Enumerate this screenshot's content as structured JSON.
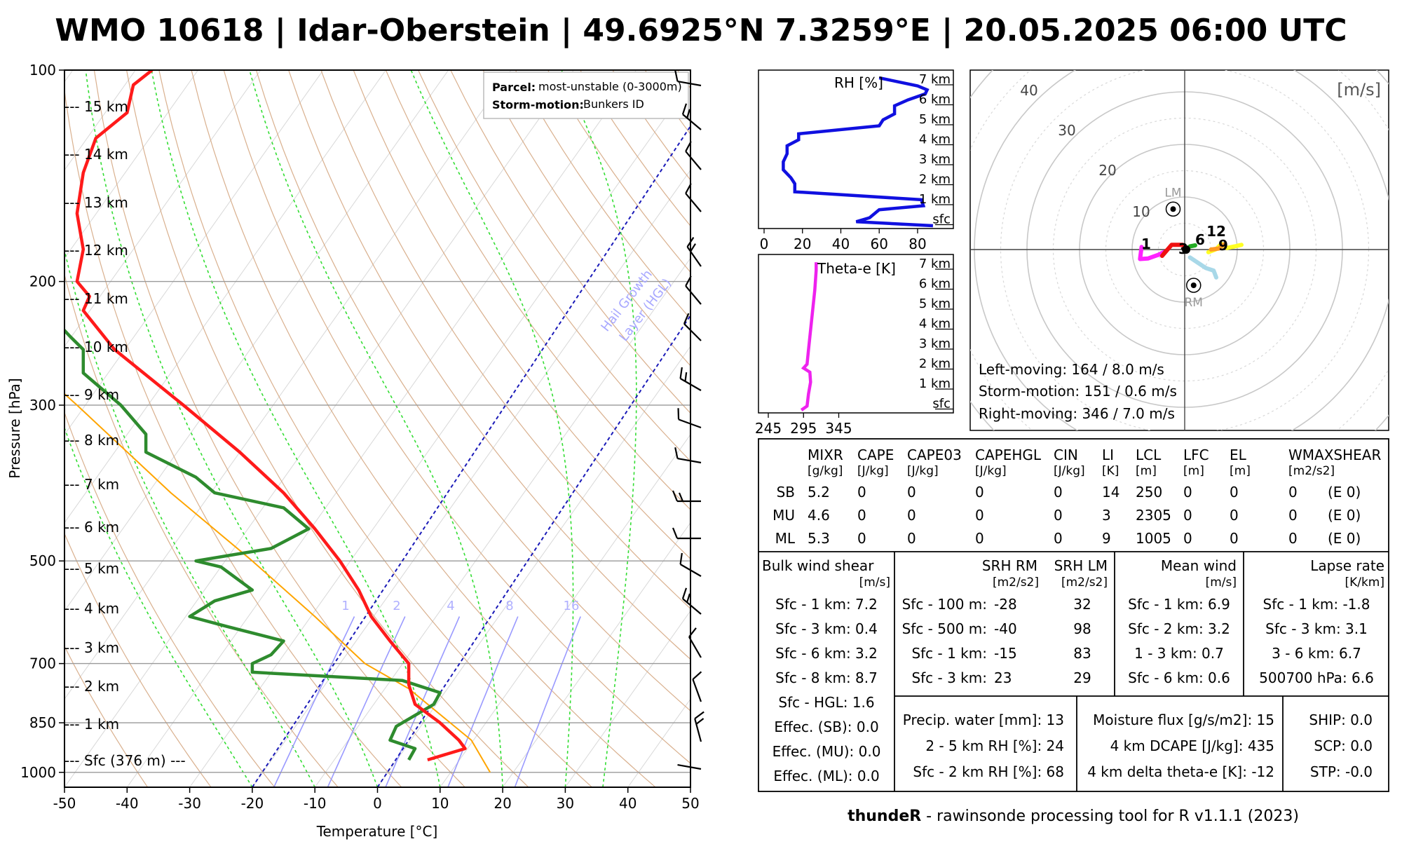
{
  "title": "WMO 10618 | Idar-Oberstein | 49.6925°N 7.3259°E | 20.05.2025 06:00 UTC",
  "footer": {
    "bold": "thundeR",
    "rest": " - rawinsonde processing tool for R v1.1.1 (2023)"
  },
  "skewt": {
    "ylabel": "Pressure [hPa]",
    "xlabel": "Temperature [°C]",
    "pressure_ticks": [
      "100",
      "200",
      "300",
      "500",
      "700",
      "850",
      "1000"
    ],
    "temp_ticks": [
      "-50",
      "-40",
      "-30",
      "-20",
      "-10",
      "0",
      "10",
      "20",
      "30",
      "40",
      "50"
    ],
    "height_labels": [
      "--- 15 km",
      "--- 14 km",
      "--- 13 km",
      "--- 12 km",
      "--- 11 km",
      "--- 10 km",
      "--- 9 km",
      "--- 8 km",
      "--- 7 km",
      "--- 6 km",
      "--- 5 km",
      "--- 4 km",
      "--- 3 km",
      "--- 2 km",
      "--- 1 km",
      "--- Sfc (376 m) ---"
    ],
    "mixing_ratio_labels": [
      "1",
      "2",
      "4",
      "8",
      "16"
    ],
    "hgl_label_1": "Hail Growth",
    "hgl_label_2": "Layer (HGL)",
    "legend": {
      "k1": "Parcel:",
      "v1": "most-unstable (0-3000m)",
      "k2": "Storm-motion:",
      "v2": "Bunkers ID"
    }
  },
  "rh_panel": {
    "label": "RH [%]",
    "x_ticks": [
      "0",
      "20",
      "40",
      "60",
      "80"
    ],
    "heights": [
      "7 km",
      "6 km",
      "5 km",
      "4 km",
      "3 km",
      "2 km",
      "1 km",
      "sfc"
    ]
  },
  "thetae_panel": {
    "label": "Theta-e [K]",
    "x_ticks": [
      "245",
      "295",
      "345"
    ],
    "heights": [
      "7 km",
      "6 km",
      "5 km",
      "4 km",
      "3 km",
      "2 km",
      "1 km",
      "sfc"
    ]
  },
  "hodograph": {
    "unit": "[m/s]",
    "ring_labels": [
      "10",
      "20",
      "30",
      "40"
    ],
    "lm_label": "LM",
    "rm_label": "RM",
    "point_labels": [
      "1",
      "3",
      "6",
      "9",
      "12"
    ],
    "left_moving": "Left-moving: 164 / 8.0 m/s",
    "storm_motion": "Storm-motion: 151 / 0.6 m/s",
    "right_moving": "Right-moving: 346 / 7.0 m/s"
  },
  "params_table": {
    "headers": [
      "MIXR",
      "CAPE",
      "CAPE03",
      "CAPEHGL",
      "CIN",
      "LI",
      "LCL",
      "LFC",
      "EL",
      "WMAXSHEAR"
    ],
    "units": [
      "[g/kg]",
      "[J/kg]",
      "[J/kg]",
      "[J/kg]",
      "[J/kg]",
      "[K]",
      "[m]",
      "[m]",
      "[m]",
      "[m2/s2]"
    ],
    "rows": [
      {
        "label": "SB",
        "values": [
          "5.2",
          "0",
          "0",
          "0",
          "0",
          "14",
          "250",
          "0",
          "0",
          "0",
          "(E 0)"
        ]
      },
      {
        "label": "MU",
        "values": [
          "4.6",
          "0",
          "0",
          "0",
          "0",
          "3",
          "2305",
          "0",
          "0",
          "0",
          "(E 0)"
        ]
      },
      {
        "label": "ML",
        "values": [
          "5.3",
          "0",
          "0",
          "0",
          "0",
          "9",
          "1005",
          "0",
          "0",
          "0",
          "(E 0)"
        ]
      }
    ]
  },
  "bulk_shear": {
    "title": "Bulk wind shear",
    "unit": "[m/s]",
    "rows": [
      "Sfc - 1 km: 7.2",
      "Sfc - 3 km: 0.4",
      "Sfc - 6 km: 3.2",
      "Sfc - 8 km: 8.7",
      "Sfc - HGL: 1.6",
      "Effec. (SB): 0.0",
      "Effec. (MU): 0.0",
      "Effec. (ML): 0.0"
    ]
  },
  "srh": {
    "h1": "SRH RM",
    "h2": "SRH LM",
    "u1": "[m2/s2]",
    "u2": "[m2/s2]",
    "rows": [
      {
        "label": "Sfc - 100 m:",
        "rm": "-28",
        "lm": "32"
      },
      {
        "label": "Sfc - 500 m:",
        "rm": "-40",
        "lm": "98"
      },
      {
        "label": "Sfc - 1 km:",
        "rm": "-15",
        "lm": "83"
      },
      {
        "label": "Sfc - 3 km:",
        "rm": "23",
        "lm": "29"
      }
    ]
  },
  "mean_wind": {
    "title": "Mean wind",
    "unit": "[m/s]",
    "rows": [
      "Sfc - 1 km: 6.9",
      "Sfc - 2 km: 3.2",
      "1 - 3 km: 0.7",
      "Sfc - 6 km: 0.6"
    ]
  },
  "lapse_rate": {
    "title": "Lapse rate",
    "unit": "[K/km]",
    "rows": [
      "Sfc - 1 km: -1.8",
      "Sfc - 3 km: 3.1",
      "3 - 6 km: 6.7",
      "500700 hPa: 6.6"
    ]
  },
  "moisture": {
    "rows": [
      "Precip. water [mm]: 13",
      "2 - 5 km RH [%]: 24",
      "Sfc - 2 km RH [%]: 68"
    ]
  },
  "flux": {
    "rows": [
      "Moisture flux [g/s/m2]: 15",
      "4 km DCAPE [J/kg]: 435",
      "4 km delta theta-e [K]: -12"
    ]
  },
  "composite": {
    "rows": [
      "SHIP: 0.0",
      "SCP: 0.0",
      "STP: -0.0"
    ]
  },
  "colors": {
    "temperature": "#ff1a1a",
    "dewpoint": "#2e8b2e",
    "parcel": "#ffa500",
    "dry_adiabat": "#d2a27a",
    "moist_adiabat": "#33dd33",
    "mixing_ratio": "#9a9aff",
    "rh_line": "#1010e0",
    "thetae_line": "#ee22ee"
  },
  "chart_data": {
    "type": "line",
    "skewt_temperature": {
      "p": [
        960,
        925,
        900,
        850,
        800,
        750,
        700,
        650,
        600,
        550,
        500,
        450,
        400,
        350,
        300,
        250,
        220,
        210,
        200,
        180,
        160,
        140,
        125,
        115,
        105,
        100
      ],
      "t": [
        8,
        14,
        13,
        10,
        6,
        5,
        5,
        2,
        -1,
        -3,
        -6,
        -10,
        -15,
        -22,
        -31,
        -42,
        -47,
        -46,
        -48,
        -47,
        -48,
        -47,
        -45,
        -40,
        -39,
        -36
      ]
    },
    "skewt_dewpoint": {
      "p": [
        960,
        925,
        900,
        860,
        800,
        770,
        740,
        720,
        700,
        680,
        650,
        620,
        600,
        570,
        550,
        510,
        500,
        480,
        450,
        420,
        400,
        380,
        350,
        330,
        300,
        270,
        250,
        240,
        220,
        210,
        200,
        190,
        180,
        160,
        140,
        120,
        100
      ],
      "t": [
        5,
        6,
        2,
        3,
        9,
        10,
        4,
        -20,
        -20,
        -17,
        -15,
        -24,
        -30,
        -26,
        -20,
        -25,
        -29,
        -17,
        -11,
        -15,
        -26,
        -29,
        -37,
        -37,
        -41,
        -47,
        -47,
        -49,
        -53,
        -63,
        -55,
        -56,
        -59,
        -60,
        -62,
        -65,
        -65
      ]
    },
    "skewt_parcel": {
      "p": [
        1000,
        900,
        760,
        700,
        600,
        500,
        400,
        300,
        200,
        150,
        100
      ],
      "t": [
        18,
        15,
        5,
        -2,
        -10,
        -20,
        -33,
        -48,
        -70,
        -83,
        -98
      ]
    },
    "rh_profile": {
      "height_km": [
        0,
        0.2,
        0.4,
        0.8,
        1.0,
        1.3,
        1.7,
        2.1,
        2.4,
        2.8,
        3.2,
        3.6,
        4.0,
        4.3,
        4.6,
        5.0,
        5.3,
        5.6,
        6.0,
        6.3,
        6.6,
        6.8,
        7.0,
        7.4
      ],
      "rh": [
        88,
        48,
        55,
        60,
        83,
        82,
        16,
        16,
        14,
        10,
        10,
        12,
        12,
        18,
        18,
        60,
        62,
        68,
        68,
        75,
        84,
        85,
        80,
        60
      ]
    },
    "thetae_profile": {
      "height_km": [
        0,
        0.2,
        0.8,
        1.4,
        1.9,
        2.1,
        2.3,
        3.0,
        4.0,
        5.0,
        6.0,
        7.0,
        7.4
      ],
      "theta_e": [
        292,
        300,
        302,
        305,
        304,
        295,
        300,
        302,
        305,
        308,
        311,
        313,
        313
      ]
    },
    "hodograph_0_1km": {
      "u": [
        -3.5,
        -4.3,
        -2.5,
        -0.4,
        0.2
      ],
      "v": [
        -0.2,
        -1.2,
        0.9,
        0.9,
        0.3
      ]
    },
    "hodograph_1_3km": {
      "u": [
        -8.2,
        -8.5,
        -7.0,
        -5.0,
        -4.0
      ],
      "v": [
        0.5,
        -1.8,
        -1.7,
        -1.0,
        -0.5
      ]
    },
    "hodograph_3_6km": {
      "u": [
        0.2,
        1.0,
        2.0
      ],
      "v": [
        0.0,
        0.6,
        0.8
      ]
    },
    "hodograph_6_9km": {
      "u": [
        1.0,
        4.0,
        5.5,
        6.0
      ],
      "v": [
        -1.5,
        -3.5,
        -4.0,
        -5.3
      ]
    },
    "hodograph_9_12km": {
      "u": [
        5.0,
        6.5,
        7.5
      ],
      "v": [
        0.0,
        0.2,
        1.0
      ]
    },
    "hodograph_12km_plus": {
      "u": [
        4.5,
        6.0,
        7.0,
        8.0,
        9.5,
        10.8
      ],
      "v": [
        -0.5,
        0.1,
        1.1,
        0.3,
        0.6,
        0.9
      ]
    },
    "storm_vectors": {
      "LM": [
        -2.2,
        7.7
      ],
      "RM": [
        1.7,
        -6.8
      ]
    },
    "hodograph_range": [
      -40,
      40
    ]
  }
}
